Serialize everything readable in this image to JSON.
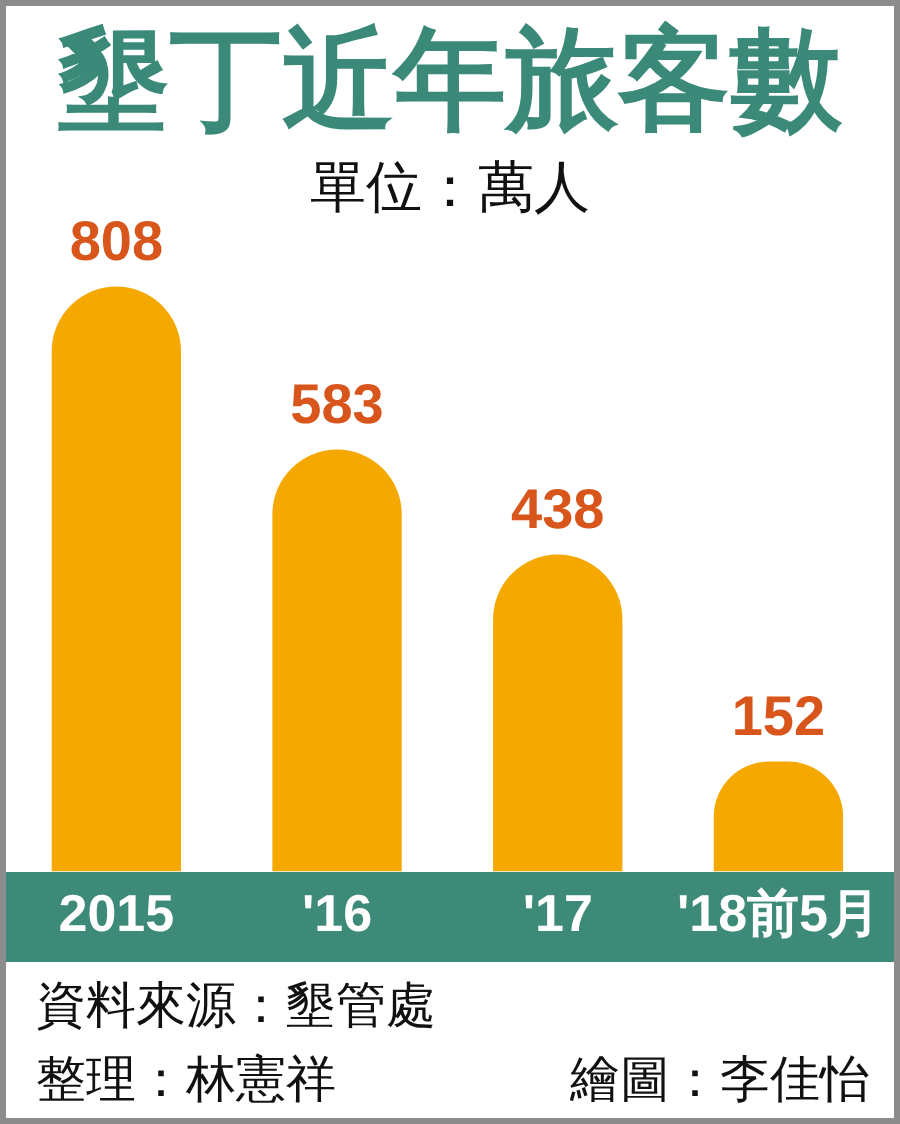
{
  "chart_data": {
    "type": "bar",
    "title": "墾丁近年旅客數",
    "subtitle": "單位：萬人",
    "categories": [
      "2015",
      "'16",
      "'17",
      "'18前5月"
    ],
    "values": [
      808,
      583,
      438,
      152
    ],
    "color": "#f5a800",
    "data_labels": true,
    "tick_labels": "x",
    "annotations": [
      "資料來源：墾管處",
      "整理：林憲祥",
      "繪圖：李佳怡"
    ]
  }
}
